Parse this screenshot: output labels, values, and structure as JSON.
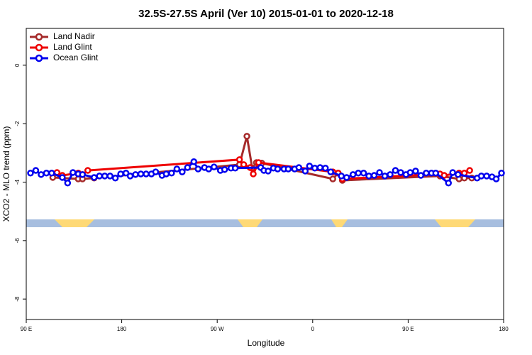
{
  "chart_data": {
    "type": "line",
    "title": "32.5S-27.5S April (Ver 10)   2015-01-01 to 2020-12-18",
    "xlabel": "Longitude",
    "ylabel": "XCO2 - MLO trend (ppm)",
    "xlim": [
      90,
      540
    ],
    "ylim": [
      -8.7,
      1.26
    ],
    "xticks": [
      {
        "value": 90,
        "label": "90 E"
      },
      180,
      {
        "value": 270,
        "label": "90 W"
      },
      {
        "value": 360,
        "label": "0"
      },
      {
        "value": 450,
        "label": "90 E"
      },
      {
        "value": 540,
        "label": "180"
      }
    ],
    "yticks": [
      0,
      -2,
      -4,
      -6,
      -8
    ],
    "legend": "top-left",
    "series": [
      {
        "name": "Land Nadir",
        "color": "#a52a2a",
        "x": [
          115,
          139,
          143,
          154,
          291,
          298,
          303,
          307,
          312,
          379,
          384,
          388,
          480,
          498,
          503,
          510
        ],
        "values": [
          -3.84,
          -3.89,
          -3.89,
          -3.86,
          -3.4,
          -2.43,
          -3.52,
          -3.33,
          -3.35,
          -3.89,
          -3.69,
          -3.94,
          -3.79,
          -3.89,
          -3.86,
          -3.86
        ]
      },
      {
        "name": "Land Glint",
        "color": "#ee0000",
        "x": [
          119,
          124,
          139,
          143,
          148,
          291,
          295,
          301,
          304,
          309,
          379,
          384,
          388,
          480,
          484,
          498,
          503,
          508
        ],
        "values": [
          -3.67,
          -3.77,
          -3.69,
          -3.74,
          -3.6,
          -3.23,
          -3.4,
          -3.5,
          -3.72,
          -3.33,
          -3.65,
          -3.69,
          -3.89,
          -3.72,
          -3.77,
          -3.69,
          -3.69,
          -3.6
        ]
      },
      {
        "name": "Ocean Glint",
        "color": "#0000ee",
        "x": [
          94,
          99,
          104,
          109,
          114,
          124,
          129,
          134,
          139,
          143,
          154,
          159,
          164,
          169,
          174,
          179,
          184,
          188,
          193,
          198,
          203,
          208,
          212,
          218,
          222,
          227,
          232,
          237,
          242,
          248,
          252,
          258,
          262,
          267,
          273,
          277,
          283,
          287,
          311,
          314,
          318,
          323,
          327,
          333,
          337,
          343,
          347,
          353,
          357,
          362,
          367,
          372,
          377,
          387,
          392,
          398,
          403,
          408,
          413,
          418,
          423,
          428,
          433,
          438,
          443,
          448,
          452,
          457,
          462,
          467,
          472,
          476,
          488,
          492,
          497,
          515,
          519,
          524,
          529,
          533,
          538
        ],
        "values": [
          -3.69,
          -3.6,
          -3.74,
          -3.69,
          -3.69,
          -3.84,
          -4.03,
          -3.67,
          -3.72,
          -3.74,
          -3.84,
          -3.79,
          -3.79,
          -3.79,
          -3.86,
          -3.72,
          -3.69,
          -3.79,
          -3.74,
          -3.72,
          -3.72,
          -3.72,
          -3.65,
          -3.77,
          -3.72,
          -3.69,
          -3.55,
          -3.65,
          -3.5,
          -3.3,
          -3.55,
          -3.5,
          -3.55,
          -3.48,
          -3.6,
          -3.57,
          -3.52,
          -3.52,
          -3.5,
          -3.6,
          -3.62,
          -3.52,
          -3.55,
          -3.55,
          -3.55,
          -3.55,
          -3.5,
          -3.62,
          -3.45,
          -3.52,
          -3.5,
          -3.52,
          -3.65,
          -3.79,
          -3.84,
          -3.74,
          -3.69,
          -3.69,
          -3.79,
          -3.77,
          -3.67,
          -3.79,
          -3.74,
          -3.6,
          -3.67,
          -3.74,
          -3.67,
          -3.62,
          -3.77,
          -3.69,
          -3.69,
          -3.69,
          -4.03,
          -3.67,
          -3.74,
          -3.86,
          -3.79,
          -3.79,
          -3.82,
          -3.89,
          -3.69
        ]
      }
    ]
  }
}
